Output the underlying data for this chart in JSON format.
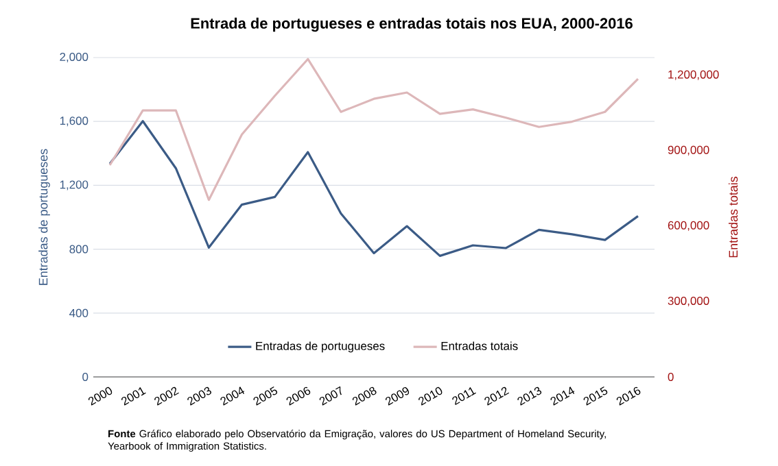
{
  "chart_data": {
    "type": "line",
    "title": "Entrada de portugueses e entradas totais nos EUA, 2000-2016",
    "ylabel": "Entradas de portugueses",
    "y2label": "Entradas totais",
    "categories": [
      "2000",
      "2001",
      "2002",
      "2003",
      "2004",
      "2005",
      "2006",
      "2007",
      "2008",
      "2009",
      "2010",
      "2011",
      "2012",
      "2013",
      "2014",
      "2015",
      "2016"
    ],
    "series": [
      {
        "name": "Entradas de portugueses",
        "color": "#3b5b86",
        "values": [
          1335,
          1602,
          1307,
          810,
          1079,
          1127,
          1408,
          1024,
          775,
          944,
          758,
          824,
          807,
          921,
          893,
          858,
          1007
        ]
      },
      {
        "name": "Entradas totais",
        "color": "#ddb7b9",
        "axis": "y2",
        "values": [
          842000,
          1060000,
          1060000,
          704000,
          964000,
          1118000,
          1264000,
          1054000,
          1106000,
          1131000,
          1046000,
          1064000,
          1031000,
          994000,
          1015000,
          1054000,
          1185000
        ]
      }
    ],
    "ylim": [
      0,
      2000
    ],
    "yticks": [
      0,
      400,
      800,
      {
        "value": 1200,
        "label": "1,200"
      },
      {
        "value": 1600,
        "label": "1,600"
      },
      {
        "value": 2000,
        "label": "2,000"
      }
    ],
    "y2lim": [
      0,
      1270000
    ],
    "y2ticks": [
      0,
      {
        "value": 300000,
        "label": "300,000"
      },
      {
        "value": 600000,
        "label": "600,000"
      },
      {
        "value": 900000,
        "label": "900,000"
      },
      {
        "value": 1200000,
        "label": "1,200,000"
      }
    ],
    "grid": "y",
    "legend": "bottom",
    "marker": "none",
    "line_style": "solid",
    "annotations": [
      "**Fonte** Gráfico elaborado pelo Observatório da Emigração, valores do US Department of Homeland Security, Yearbook of Immigration Statistics."
    ]
  }
}
